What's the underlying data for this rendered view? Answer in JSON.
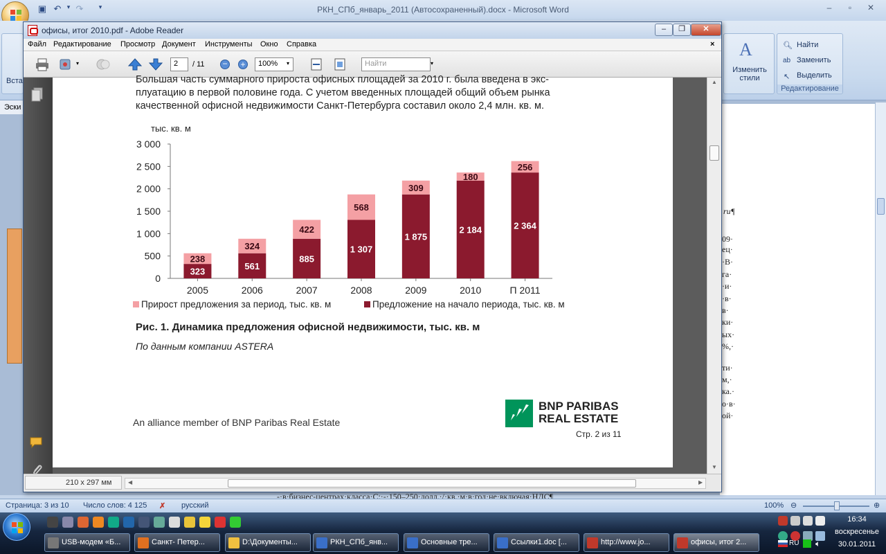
{
  "word": {
    "title": "РКН_СПб_январь_2011 (Автосохраненный).docx - Microsoft Word",
    "ribbon": {
      "find_label": "Найти",
      "replace_label": "Заменить",
      "select_label": "Выделить",
      "change_styles_label": "Изменить стили",
      "editing_group_label": "Редактирование",
      "insert_stub": "Вста",
      "sketch_stub": "Эски"
    },
    "side_text": [
      "ru¶",
      "09·",
      "ец·",
      "·В·",
      "га·",
      "·и·",
      "·в·",
      "в·",
      "ки·",
      "ых·",
      "%,·",
      "ти·",
      "м,·",
      "ка.·",
      "о·в·",
      "ой·"
    ],
    "hidden_line": "-·в·бизнес-центрах·класса·С:·-·150–250·долл.·/·кв.·м·в·год·не·включая·НДС¶",
    "status": {
      "page": "Страница: 3 из 10",
      "words": "Число слов: 4 125",
      "language": "русский",
      "zoom": "100%"
    }
  },
  "reader": {
    "title": "офисы, итог 2010.pdf - Adobe Reader",
    "menu": [
      "Файл",
      "Редактирование",
      "Просмотр",
      "Документ",
      "Инструменты",
      "Окно",
      "Справка"
    ],
    "page_current": "2",
    "page_total": "/ 11",
    "zoom": "100%",
    "search_placeholder": "Найти",
    "page_size": "210 x 297 мм"
  },
  "pdf": {
    "para": [
      "Большая часть суммарного прироста офисных площадей за 2010 г. была введена в экс-",
      "плуатацию в первой половине года. С учетом введенных площадей общий объем рынка",
      "качественной офисной недвижимости Санкт-Петербурга составил около 2,4 млн. кв. м."
    ],
    "figure_caption": "Рис. 1. Динамика предложения офисной недвижимости, тыс. кв. м",
    "source": "По данным компании ASTERA",
    "alliance": "An alliance member of BNP Paribas Real Estate",
    "brand_line1": "BNP PARIBAS",
    "brand_line2": "REAL ESTATE",
    "page_footer": "Стр. 2 из 11"
  },
  "chart_data": {
    "type": "bar",
    "stacked": true,
    "ylabel": "тыс. кв. м",
    "ylim": [
      0,
      3000
    ],
    "yticks": [
      "3 000",
      "2 500",
      "2 000",
      "1 500",
      "1 000",
      "500",
      "0"
    ],
    "categories": [
      "2005",
      "2006",
      "2007",
      "2008",
      "2009",
      "2010",
      "П 2011"
    ],
    "series": [
      {
        "name": "Предложение на начало периода, тыс. кв. м",
        "color": "#8b1a2e",
        "values": [
          323,
          561,
          885,
          1307,
          1875,
          2184,
          2364
        ],
        "labels": [
          "323",
          "561",
          "885",
          "1 307",
          "1 875",
          "2 184",
          "2 364"
        ]
      },
      {
        "name": "Прирост предложения за период, тыс. кв. м",
        "color": "#f4a0a4",
        "values": [
          238,
          324,
          422,
          568,
          309,
          180,
          256
        ],
        "labels": [
          "238",
          "324",
          "422",
          "568",
          "309",
          "180",
          "256"
        ]
      }
    ],
    "legend": "bottom"
  },
  "taskbar": {
    "tasks": [
      "USB-модем «Б...",
      "Санкт- Петер...",
      "D:\\Документы...",
      "РКН_СПб_янв...",
      "Основные тре...",
      "Ссылки1.doc [...",
      "http://www.jo...",
      "офисы, итог 2..."
    ],
    "time": "16:34",
    "day": "воскресенье",
    "date": "30.01.2011",
    "lang": "RU"
  }
}
